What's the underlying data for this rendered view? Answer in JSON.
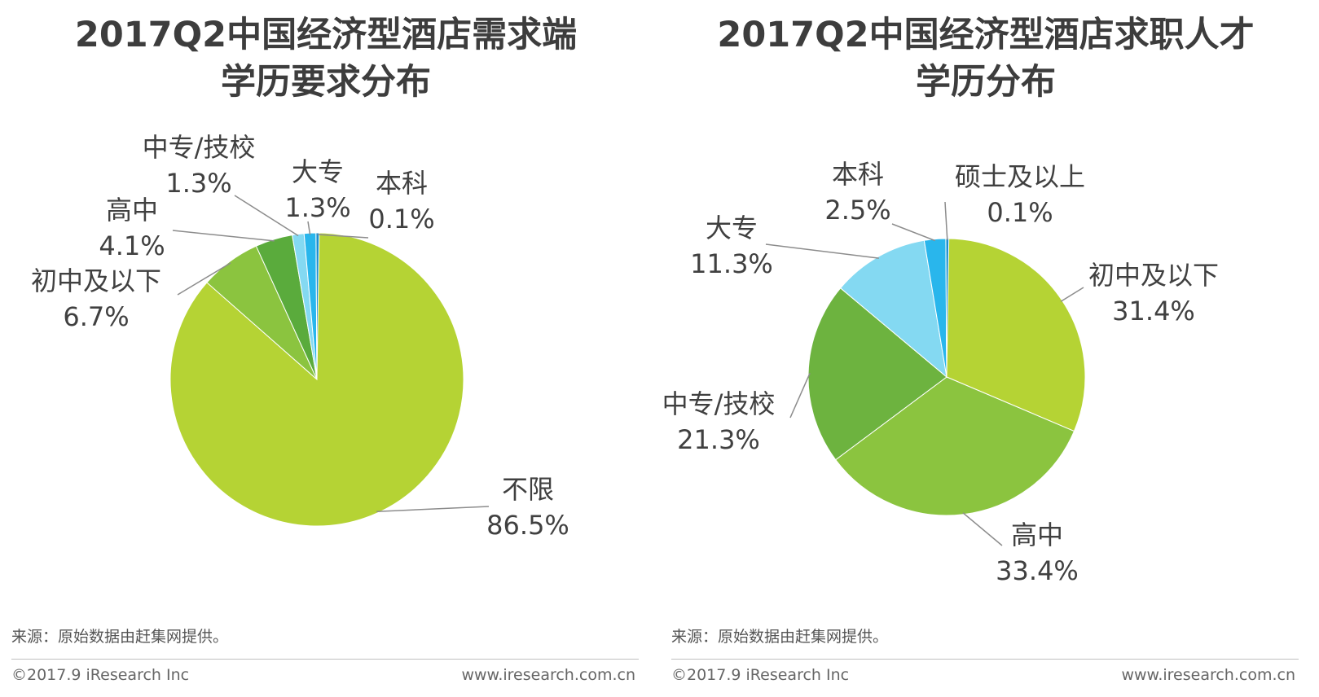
{
  "chart_data": [
    {
      "type": "pie",
      "title": [
        "2017Q2中国经济型酒店需求端",
        "学历要求分布"
      ],
      "categories": [
        "不限",
        "初中及以下",
        "高中",
        "中专/技校",
        "大专",
        "本科"
      ],
      "values": [
        86.5,
        6.7,
        4.1,
        1.3,
        1.3,
        0.1
      ],
      "value_labels": [
        "86.5%",
        "6.7%",
        "4.1%",
        "1.3%",
        "1.3%",
        "0.1%"
      ],
      "colors": [
        "#b5d334",
        "#8bc43f",
        "#5aab3c",
        "#84d9f2",
        "#29b6ec",
        "#1a8fd0"
      ],
      "start": "top, clockwise from 12 o'clock",
      "source": "来源：原始数据由赶集网提供。"
    },
    {
      "type": "pie",
      "title": [
        "2017Q2中国经济型酒店求职人才",
        "学历分布"
      ],
      "categories": [
        "初中及以下",
        "高中",
        "中专/技校",
        "大专",
        "本科",
        "硕士及以上"
      ],
      "values": [
        31.4,
        33.4,
        21.3,
        11.3,
        2.5,
        0.1
      ],
      "value_labels": [
        "31.4%",
        "33.4%",
        "21.3%",
        "11.3%",
        "2.5%",
        "0.1%"
      ],
      "colors": [
        "#b5d334",
        "#8bc43f",
        "#6db33f",
        "#84d9f2",
        "#29b6ec",
        "#1a8fd0"
      ],
      "start": "top, clockwise from 12 o'clock",
      "source": "来源：原始数据由赶集网提供。"
    }
  ],
  "footer": {
    "copyright": "©2017.9 iResearch Inc",
    "website": "www.iresearch.com.cn"
  }
}
